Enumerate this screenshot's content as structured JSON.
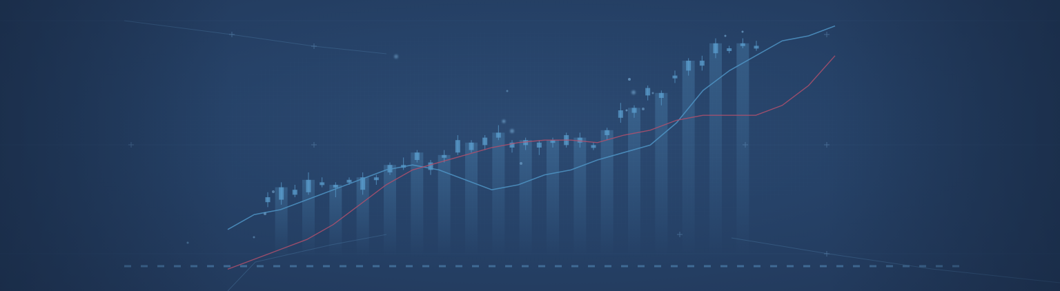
{
  "banner": {
    "theme": "financial-chart-background",
    "colors": {
      "background": "#24405f",
      "candle": "#5b9fd0",
      "line_blue": "#4f94c4",
      "line_red": "#b0506c",
      "grid": "#3a5f86"
    },
    "elements": [
      "candlestick-series",
      "blue-trend-line",
      "red-trend-line",
      "dashed-baseline",
      "sparkle-dots",
      "grid-pattern"
    ]
  },
  "chart_data": {
    "type": "candlestick",
    "candles": [
      {
        "o": 15,
        "c": 13,
        "h": 17,
        "l": 11
      },
      {
        "o": 14,
        "c": 19,
        "h": 21,
        "l": 12
      },
      {
        "o": 18,
        "c": 16,
        "h": 20,
        "l": 15
      },
      {
        "o": 17,
        "c": 22,
        "h": 25,
        "l": 16
      },
      {
        "o": 21,
        "c": 20,
        "h": 23,
        "l": 19
      },
      {
        "o": 20,
        "c": 19,
        "h": 21,
        "l": 15
      },
      {
        "o": 21,
        "c": 22,
        "h": 23,
        "l": 20
      },
      {
        "o": 18,
        "c": 23,
        "h": 25,
        "l": 16
      },
      {
        "o": 22,
        "c": 23,
        "h": 24,
        "l": 20
      },
      {
        "o": 25,
        "c": 28,
        "h": 29,
        "l": 24
      },
      {
        "o": 27,
        "c": 28,
        "h": 31,
        "l": 26
      },
      {
        "o": 30,
        "c": 33,
        "h": 34,
        "l": 29
      },
      {
        "o": 26,
        "c": 29,
        "h": 30,
        "l": 24
      },
      {
        "o": 31,
        "c": 32,
        "h": 34,
        "l": 29
      },
      {
        "o": 33,
        "c": 38,
        "h": 40,
        "l": 32
      },
      {
        "o": 34,
        "c": 37,
        "h": 38,
        "l": 33
      },
      {
        "o": 36,
        "c": 39,
        "h": 40,
        "l": 34
      },
      {
        "o": 39,
        "c": 41,
        "h": 44,
        "l": 38
      },
      {
        "o": 35,
        "c": 37,
        "h": 38,
        "l": 33
      },
      {
        "o": 38,
        "c": 36,
        "h": 39,
        "l": 34
      },
      {
        "o": 35,
        "c": 37,
        "h": 38,
        "l": 32
      },
      {
        "o": 37,
        "c": 38,
        "h": 39,
        "l": 35
      },
      {
        "o": 36,
        "c": 40,
        "h": 41,
        "l": 35
      },
      {
        "o": 37,
        "c": 39,
        "h": 41,
        "l": 35
      },
      {
        "o": 35,
        "c": 36,
        "h": 37,
        "l": 34
      },
      {
        "o": 40,
        "c": 42,
        "h": 43,
        "l": 38
      },
      {
        "o": 47,
        "c": 50,
        "h": 53,
        "l": 45
      },
      {
        "o": 51,
        "c": 49,
        "h": 52,
        "l": 47
      },
      {
        "o": 56,
        "c": 59,
        "h": 60,
        "l": 54
      },
      {
        "o": 55,
        "c": 57,
        "h": 58,
        "l": 52
      },
      {
        "o": 63,
        "c": 64,
        "h": 66,
        "l": 61
      },
      {
        "o": 66,
        "c": 70,
        "h": 71,
        "l": 64
      },
      {
        "o": 68,
        "c": 70,
        "h": 72,
        "l": 66
      },
      {
        "o": 73,
        "c": 77,
        "h": 79,
        "l": 71
      },
      {
        "o": 74,
        "c": 75,
        "h": 76,
        "l": 73
      },
      {
        "o": 76,
        "c": 77,
        "h": 79,
        "l": 75
      },
      {
        "o": 75,
        "c": 76,
        "h": 78,
        "l": 74
      }
    ],
    "series": [
      {
        "values": [
          2,
          8,
          10,
          14,
          18,
          22,
          26,
          28,
          26,
          22,
          18,
          20,
          24,
          26,
          30,
          33,
          36,
          45,
          58,
          66,
          72,
          78,
          80,
          84
        ]
      },
      {
        "values": [
          -14,
          -10,
          -6,
          -2,
          4,
          12,
          20,
          26,
          29,
          32,
          35,
          37,
          38,
          38,
          37,
          40,
          42,
          46,
          48,
          48,
          48,
          52,
          60,
          72
        ]
      }
    ]
  }
}
